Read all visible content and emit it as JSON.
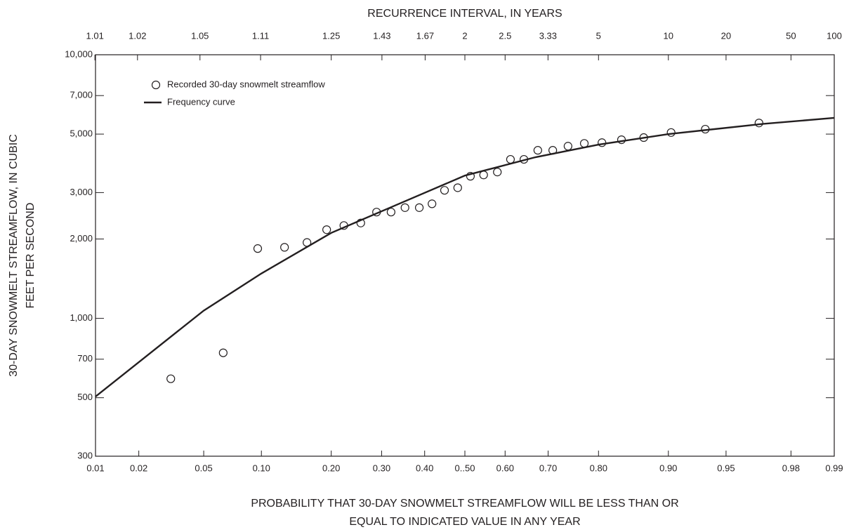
{
  "chart_data": {
    "type": "scatter",
    "title": "RECURRENCE INTERVAL, IN YEARS",
    "x_label": [
      "PROBABILITY THAT 30-DAY SNOWMELT STREAMFLOW WILL BE LESS THAN OR",
      "EQUAL TO INDICATED  VALUE IN ANY YEAR"
    ],
    "y_label": [
      "30-DAY SNOWMELT STREAMFLOW, IN CUBIC",
      "FEET PER SECOND"
    ],
    "x_scale": "normal-probability",
    "y_scale": "log",
    "xlim": [
      0.01,
      0.99
    ],
    "ylim": [
      300,
      10000
    ],
    "xticks": [
      0.01,
      0.02,
      0.05,
      {
        "value": 0.1,
        "label": "0.10"
      },
      {
        "value": 0.2,
        "label": "0.20"
      },
      {
        "value": 0.3,
        "label": "0.30"
      },
      {
        "value": 0.4,
        "label": "0.40"
      },
      {
        "value": 0.5,
        "label": "0..50"
      },
      {
        "value": 0.6,
        "label": "0.60"
      },
      {
        "value": 0.7,
        "label": "0.70"
      },
      {
        "value": 0.8,
        "label": "0.80"
      },
      {
        "value": 0.9,
        "label": "0.90"
      },
      0.95,
      0.98,
      0.99
    ],
    "x2ticks": [
      100,
      50,
      20,
      10,
      5,
      3.33,
      2.5,
      2,
      1.67,
      1.43,
      1.25,
      1.11,
      1.05,
      1.02,
      1.01
    ],
    "yticks": [
      300,
      500,
      700,
      {
        "value": 1000,
        "label": "1,000"
      },
      {
        "value": 2000,
        "label": "2,000"
      },
      {
        "value": 3000,
        "label": "3,000"
      },
      {
        "value": 5000,
        "label": "5,000"
      },
      {
        "value": 7000,
        "label": "7,000"
      },
      {
        "value": 10000,
        "label": "10,000"
      }
    ],
    "grid": false,
    "legend": "top-left",
    "series": [
      {
        "name": "Recorded 30-day snowmelt streamflow",
        "type": "scatter",
        "color": "#231f20",
        "x": [
          0.032,
          0.064,
          0.096,
          0.128,
          0.16,
          0.192,
          0.223,
          0.256,
          0.289,
          0.321,
          0.353,
          0.387,
          0.418,
          0.449,
          0.482,
          0.514,
          0.547,
          0.581,
          0.613,
          0.645,
          0.677,
          0.71,
          0.742,
          0.774,
          0.806,
          0.838,
          0.87,
          0.903,
          0.935,
          0.968
        ],
        "values": [
          590,
          740,
          1840,
          1860,
          1940,
          2170,
          2250,
          2300,
          2530,
          2530,
          2630,
          2630,
          2720,
          3060,
          3130,
          3460,
          3500,
          3590,
          4010,
          4010,
          4340,
          4340,
          4500,
          4610,
          4640,
          4760,
          4850,
          5070,
          5220,
          5510
        ]
      },
      {
        "name": "Frequency curve",
        "type": "line",
        "color": "#231f20",
        "x": [
          0.01,
          0.05,
          0.1,
          0.2,
          0.33,
          0.5,
          0.67,
          0.8,
          0.9,
          0.97,
          0.99
        ],
        "values": [
          505,
          1070,
          1480,
          2110,
          2680,
          3480,
          4080,
          4560,
          5000,
          5470,
          5760
        ]
      }
    ]
  }
}
